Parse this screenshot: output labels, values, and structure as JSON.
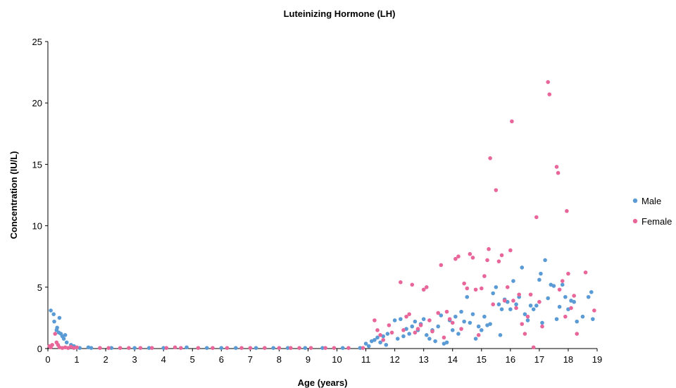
{
  "chart_data": {
    "type": "scatter",
    "title": "Luteinizing Hormone (LH)",
    "xlabel": "Age (years)",
    "ylabel": "Concentration (IU/L)",
    "xlim": [
      0,
      19
    ],
    "ylim": [
      0,
      25
    ],
    "xticks": [
      "0",
      "1",
      "2",
      "3",
      "4",
      "5",
      "6",
      "7",
      "8",
      "9",
      "10",
      "11",
      "12",
      "13",
      "14",
      "15",
      "16",
      "17",
      "18",
      "19"
    ],
    "yticks": [
      "0",
      "5",
      "10",
      "15",
      "20",
      "25"
    ],
    "grid": false,
    "legend_position": "right",
    "series": [
      {
        "name": "Male",
        "color": "#5B9BD5",
        "points": [
          [
            0.1,
            3.1
          ],
          [
            0.2,
            2.8
          ],
          [
            0.22,
            2.2
          ],
          [
            0.3,
            1.5
          ],
          [
            0.32,
            1.7
          ],
          [
            0.38,
            1.3
          ],
          [
            0.4,
            2.5
          ],
          [
            0.45,
            1.2
          ],
          [
            0.5,
            1.0
          ],
          [
            0.55,
            0.8
          ],
          [
            0.6,
            1.1
          ],
          [
            0.65,
            0.5
          ],
          [
            0.8,
            0.3
          ],
          [
            0.9,
            0.2
          ],
          [
            1.1,
            0.05
          ],
          [
            1.4,
            0.1
          ],
          [
            1.5,
            0.05
          ],
          [
            2.2,
            0.05
          ],
          [
            3.0,
            0.05
          ],
          [
            3.5,
            0.05
          ],
          [
            4.0,
            0.05
          ],
          [
            4.8,
            0.1
          ],
          [
            5.5,
            0.05
          ],
          [
            6.0,
            0.05
          ],
          [
            6.5,
            0.05
          ],
          [
            7.2,
            0.05
          ],
          [
            7.8,
            0.05
          ],
          [
            8.3,
            0.05
          ],
          [
            8.9,
            0.05
          ],
          [
            9.5,
            0.05
          ],
          [
            10.2,
            0.05
          ],
          [
            10.8,
            0.05
          ],
          [
            11.0,
            0.4
          ],
          [
            11.1,
            0.2
          ],
          [
            11.2,
            0.6
          ],
          [
            11.3,
            0.7
          ],
          [
            11.4,
            0.9
          ],
          [
            11.5,
            0.5
          ],
          [
            11.6,
            1.0
          ],
          [
            11.7,
            0.3
          ],
          [
            11.75,
            1.2
          ],
          [
            12.0,
            2.3
          ],
          [
            12.1,
            0.8
          ],
          [
            12.2,
            2.4
          ],
          [
            12.3,
            1.0
          ],
          [
            12.4,
            1.6
          ],
          [
            12.5,
            1.2
          ],
          [
            12.6,
            1.8
          ],
          [
            12.7,
            2.2
          ],
          [
            12.8,
            1.5
          ],
          [
            12.9,
            2.0
          ],
          [
            13.0,
            2.4
          ],
          [
            13.1,
            1.1
          ],
          [
            13.2,
            0.8
          ],
          [
            13.3,
            1.5
          ],
          [
            13.4,
            0.6
          ],
          [
            13.5,
            1.8
          ],
          [
            13.6,
            2.7
          ],
          [
            13.7,
            0.4
          ],
          [
            13.8,
            0.5
          ],
          [
            13.9,
            2.3
          ],
          [
            14.0,
            1.5
          ],
          [
            14.1,
            2.6
          ],
          [
            14.2,
            1.2
          ],
          [
            14.3,
            3.0
          ],
          [
            14.4,
            2.2
          ],
          [
            14.5,
            4.2
          ],
          [
            14.6,
            2.1
          ],
          [
            14.7,
            2.8
          ],
          [
            14.8,
            0.8
          ],
          [
            14.9,
            1.8
          ],
          [
            15.0,
            1.5
          ],
          [
            15.1,
            2.6
          ],
          [
            15.2,
            1.9
          ],
          [
            15.3,
            2.0
          ],
          [
            15.4,
            4.5
          ],
          [
            15.5,
            5.0
          ],
          [
            15.6,
            3.6
          ],
          [
            15.65,
            1.1
          ],
          [
            15.7,
            3.2
          ],
          [
            15.8,
            4.0
          ],
          [
            15.9,
            3.8
          ],
          [
            16.0,
            3.2
          ],
          [
            16.1,
            5.5
          ],
          [
            16.2,
            3.6
          ],
          [
            16.3,
            4.2
          ],
          [
            16.4,
            6.6
          ],
          [
            16.5,
            2.8
          ],
          [
            16.6,
            2.3
          ],
          [
            16.7,
            3.5
          ],
          [
            16.8,
            3.2
          ],
          [
            16.9,
            3.5
          ],
          [
            17.0,
            5.6
          ],
          [
            17.05,
            6.1
          ],
          [
            17.1,
            2.1
          ],
          [
            17.2,
            7.2
          ],
          [
            17.3,
            4.1
          ],
          [
            17.4,
            5.2
          ],
          [
            17.5,
            5.1
          ],
          [
            17.6,
            2.4
          ],
          [
            17.7,
            3.4
          ],
          [
            17.8,
            5.2
          ],
          [
            17.9,
            4.2
          ],
          [
            18.0,
            3.2
          ],
          [
            18.1,
            3.9
          ],
          [
            18.2,
            3.8
          ],
          [
            18.3,
            2.2
          ],
          [
            18.5,
            2.6
          ],
          [
            18.7,
            4.2
          ],
          [
            18.8,
            4.6
          ],
          [
            18.85,
            2.4
          ]
        ]
      },
      {
        "name": "Female",
        "color": "#E8669A",
        "points": [
          [
            0.05,
            0.2
          ],
          [
            0.1,
            0.1
          ],
          [
            0.15,
            0.3
          ],
          [
            0.25,
            1.2
          ],
          [
            0.3,
            0.5
          ],
          [
            0.35,
            0.3
          ],
          [
            0.4,
            0.1
          ],
          [
            0.5,
            0.05
          ],
          [
            0.6,
            0.1
          ],
          [
            0.7,
            0.05
          ],
          [
            0.8,
            0.15
          ],
          [
            0.9,
            0.05
          ],
          [
            1.0,
            0.1
          ],
          [
            1.8,
            0.05
          ],
          [
            2.1,
            0.05
          ],
          [
            2.5,
            0.05
          ],
          [
            2.8,
            0.05
          ],
          [
            3.2,
            0.05
          ],
          [
            3.6,
            0.05
          ],
          [
            4.1,
            0.05
          ],
          [
            4.4,
            0.1
          ],
          [
            4.6,
            0.05
          ],
          [
            5.2,
            0.05
          ],
          [
            5.7,
            0.05
          ],
          [
            6.2,
            0.05
          ],
          [
            6.7,
            0.05
          ],
          [
            7.0,
            0.05
          ],
          [
            7.5,
            0.05
          ],
          [
            8.0,
            0.05
          ],
          [
            8.4,
            0.05
          ],
          [
            8.7,
            0.05
          ],
          [
            9.1,
            0.05
          ],
          [
            9.6,
            0.05
          ],
          [
            9.9,
            0.05
          ],
          [
            10.4,
            0.05
          ],
          [
            10.9,
            0.05
          ],
          [
            11.3,
            2.3
          ],
          [
            11.4,
            1.5
          ],
          [
            11.5,
            1.1
          ],
          [
            11.6,
            0.7
          ],
          [
            11.8,
            1.9
          ],
          [
            11.9,
            1.3
          ],
          [
            12.2,
            5.4
          ],
          [
            12.3,
            1.5
          ],
          [
            12.4,
            2.6
          ],
          [
            12.5,
            2.8
          ],
          [
            12.6,
            5.2
          ],
          [
            12.7,
            1.3
          ],
          [
            12.8,
            1.6
          ],
          [
            12.9,
            1.9
          ],
          [
            13.0,
            4.8
          ],
          [
            13.1,
            5.0
          ],
          [
            13.2,
            2.3
          ],
          [
            13.3,
            1.4
          ],
          [
            13.5,
            2.9
          ],
          [
            13.6,
            6.8
          ],
          [
            13.7,
            0.9
          ],
          [
            13.8,
            3.0
          ],
          [
            13.9,
            2.4
          ],
          [
            14.0,
            2.1
          ],
          [
            14.1,
            7.3
          ],
          [
            14.2,
            7.5
          ],
          [
            14.3,
            1.6
          ],
          [
            14.4,
            5.3
          ],
          [
            14.5,
            4.9
          ],
          [
            14.6,
            7.7
          ],
          [
            14.7,
            7.4
          ],
          [
            14.8,
            4.8
          ],
          [
            14.9,
            1.1
          ],
          [
            15.0,
            4.9
          ],
          [
            15.1,
            5.9
          ],
          [
            15.2,
            7.2
          ],
          [
            15.25,
            8.1
          ],
          [
            15.3,
            15.5
          ],
          [
            15.4,
            3.6
          ],
          [
            15.5,
            12.9
          ],
          [
            15.6,
            7.1
          ],
          [
            15.7,
            7.6
          ],
          [
            15.8,
            3.9
          ],
          [
            15.9,
            5.0
          ],
          [
            16.0,
            8.0
          ],
          [
            16.05,
            18.5
          ],
          [
            16.1,
            3.9
          ],
          [
            16.2,
            3.3
          ],
          [
            16.3,
            4.4
          ],
          [
            16.4,
            2.0
          ],
          [
            16.5,
            1.2
          ],
          [
            16.6,
            2.6
          ],
          [
            16.7,
            4.4
          ],
          [
            16.8,
            0.1
          ],
          [
            16.9,
            10.7
          ],
          [
            17.0,
            3.8
          ],
          [
            17.1,
            1.8
          ],
          [
            17.3,
            21.7
          ],
          [
            17.35,
            20.7
          ],
          [
            17.6,
            14.8
          ],
          [
            17.65,
            14.3
          ],
          [
            17.7,
            4.8
          ],
          [
            17.8,
            5.5
          ],
          [
            17.9,
            2.6
          ],
          [
            17.95,
            11.2
          ],
          [
            18.0,
            6.1
          ],
          [
            18.1,
            3.3
          ],
          [
            18.2,
            4.3
          ],
          [
            18.3,
            1.2
          ],
          [
            18.6,
            6.2
          ],
          [
            18.9,
            3.1
          ]
        ]
      }
    ]
  }
}
